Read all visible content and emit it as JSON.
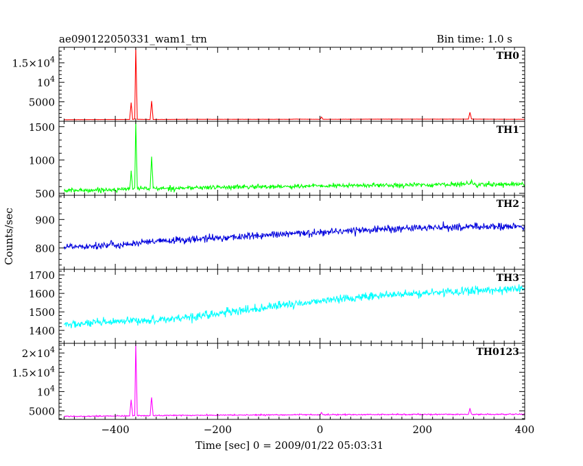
{
  "header": {
    "title": "ae090122050331_wam1_trn",
    "bin_time": "Bin time: 1.0 s"
  },
  "chart_data": {
    "type": "line",
    "xlabel": "Time [sec] 0 = 2009/01/22 05:03:31",
    "ylabel": "Counts/sec",
    "xlim": [
      -510,
      400
    ],
    "x_ticks": [
      {
        "value": -400,
        "label": "−400"
      },
      {
        "value": -200,
        "label": "−200"
      },
      {
        "value": 0,
        "label": "0"
      },
      {
        "value": 200,
        "label": "200"
      },
      {
        "value": 400,
        "label": "400"
      }
    ],
    "panels": [
      {
        "name": "TH0",
        "color": "#ff0000",
        "ylim": [
          0,
          19000
        ],
        "y_ticks": [
          {
            "value": 5000,
            "label": "5000"
          },
          {
            "value": 10000,
            "label": "10",
            "exp": "4"
          },
          {
            "value": 15000,
            "label": "1.5×10",
            "exp": "4"
          }
        ],
        "series": {
          "x": [
            -500,
            -410,
            -372,
            -369,
            -366,
            -362,
            -360,
            -357,
            -332,
            -329,
            -326,
            -250,
            -150,
            -60,
            -50,
            0,
            3,
            6,
            100,
            200,
            290,
            293,
            296,
            300,
            400
          ],
          "y": [
            400,
            450,
            450,
            4800,
            450,
            600,
            19000,
            500,
            450,
            5200,
            450,
            500,
            500,
            500,
            550,
            500,
            1100,
            500,
            550,
            550,
            550,
            2300,
            600,
            550,
            500
          ]
        }
      },
      {
        "name": "TH1",
        "color": "#00ff00",
        "ylim": [
          470,
          1580
        ],
        "y_ticks": [
          {
            "value": 500,
            "label": "500"
          },
          {
            "value": 1000,
            "label": "1000"
          },
          {
            "value": 1500,
            "label": "1500"
          }
        ],
        "series": {
          "x": [
            -500,
            -372,
            -369,
            -366,
            -362,
            -360,
            -357,
            -332,
            -329,
            -326,
            -300,
            -200,
            -100,
            0,
            100,
            200,
            293,
            296,
            300,
            400
          ],
          "y": [
            540,
            560,
            840,
            560,
            580,
            1580,
            580,
            570,
            1050,
            570,
            575,
            590,
            600,
            610,
            620,
            625,
            640,
            700,
            630,
            640
          ]
        }
      },
      {
        "name": "TH2",
        "color": "#0000dd",
        "ylim": [
          725,
          985
        ],
        "y_ticks": [
          {
            "value": 800,
            "label": "800"
          },
          {
            "value": 900,
            "label": "900"
          }
        ],
        "series": {
          "x": [
            -500,
            -400,
            -300,
            -200,
            -100,
            0,
            100,
            200,
            300,
            400
          ],
          "y": [
            805,
            810,
            825,
            835,
            845,
            855,
            865,
            870,
            875,
            875
          ]
        }
      },
      {
        "name": "TH3",
        "color": "#00ffff",
        "ylim": [
          1330,
          1730
        ],
        "y_ticks": [
          {
            "value": 1400,
            "label": "1400"
          },
          {
            "value": 1500,
            "label": "1500"
          },
          {
            "value": 1600,
            "label": "1600"
          },
          {
            "value": 1700,
            "label": "1700"
          }
        ],
        "series": {
          "x": [
            -500,
            -400,
            -300,
            -200,
            -100,
            0,
            100,
            200,
            300,
            400
          ],
          "y": [
            1430,
            1445,
            1460,
            1490,
            1525,
            1560,
            1585,
            1600,
            1615,
            1625
          ]
        }
      },
      {
        "name": "TH0123",
        "color": "#ff00ff",
        "ylim": [
          2800,
          22500
        ],
        "y_ticks": [
          {
            "value": 5000,
            "label": "5000"
          },
          {
            "value": 10000,
            "label": "10",
            "exp": "4"
          },
          {
            "value": 15000,
            "label": "1.5×10",
            "exp": "4"
          },
          {
            "value": 20000,
            "label": "2×10",
            "exp": "4"
          }
        ],
        "series": {
          "x": [
            -500,
            -372,
            -369,
            -366,
            -362,
            -360,
            -357,
            -332,
            -329,
            -326,
            -200,
            -50,
            0,
            3,
            6,
            100,
            200,
            290,
            293,
            296,
            300,
            400
          ],
          "y": [
            3600,
            3700,
            7900,
            3700,
            3800,
            22500,
            3800,
            3800,
            8500,
            3800,
            3900,
            4000,
            4000,
            4600,
            4000,
            4050,
            4100,
            4100,
            5700,
            4200,
            4100,
            4150
          ]
        }
      }
    ]
  }
}
